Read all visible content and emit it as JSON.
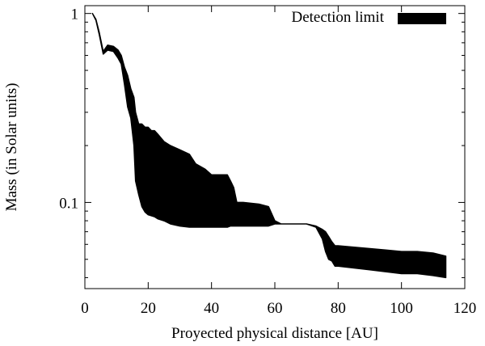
{
  "chart_data": {
    "type": "area",
    "title": "",
    "xlabel": "Proyected physical distance [AU]",
    "ylabel": "Mass (in Solar units)",
    "xlim": [
      0,
      120
    ],
    "ylim": [
      0.035,
      1.1
    ],
    "yscale": "log",
    "grid": false,
    "legend": "top-right",
    "xticks": [
      0,
      20,
      40,
      60,
      80,
      100,
      120
    ],
    "xtick_labels": [
      "0",
      "20",
      "40",
      "60",
      "80",
      "100",
      "120"
    ],
    "yticks": [
      0.1,
      1
    ],
    "ytick_labels": [
      "0.1",
      "1"
    ],
    "series": [
      {
        "name": "Detection limit",
        "color": "#000000",
        "x": [
          2.4,
          3.5,
          4.5,
          5.8,
          7.2,
          9,
          10.5,
          11.5,
          12.5,
          13.5,
          14.5,
          15.5,
          16,
          17,
          18,
          19,
          20,
          21,
          22,
          23,
          25,
          27,
          30,
          33,
          35,
          38,
          40,
          42,
          45,
          46,
          47,
          48,
          50,
          55,
          58,
          60,
          62,
          65,
          70,
          73,
          75,
          76,
          77,
          78,
          79,
          80,
          85,
          90,
          95,
          100,
          105,
          110,
          114
        ],
        "lower": [
          1.0,
          0.92,
          0.78,
          0.61,
          0.64,
          0.63,
          0.58,
          0.54,
          0.42,
          0.32,
          0.28,
          0.2,
          0.13,
          0.11,
          0.095,
          0.089,
          0.086,
          0.085,
          0.084,
          0.082,
          0.08,
          0.077,
          0.075,
          0.074,
          0.074,
          0.074,
          0.074,
          0.074,
          0.074,
          0.075,
          0.075,
          0.075,
          0.075,
          0.075,
          0.075,
          0.077,
          0.077,
          0.077,
          0.077,
          0.074,
          0.064,
          0.055,
          0.05,
          0.049,
          0.046,
          0.046,
          0.045,
          0.044,
          0.043,
          0.042,
          0.042,
          0.041,
          0.04
        ],
        "upper": [
          1.0,
          0.93,
          0.8,
          0.63,
          0.68,
          0.67,
          0.64,
          0.6,
          0.52,
          0.47,
          0.4,
          0.36,
          0.3,
          0.26,
          0.26,
          0.25,
          0.25,
          0.24,
          0.24,
          0.23,
          0.21,
          0.2,
          0.19,
          0.18,
          0.16,
          0.15,
          0.14,
          0.14,
          0.14,
          0.13,
          0.12,
          0.1,
          0.1,
          0.098,
          0.095,
          0.08,
          0.077,
          0.077,
          0.077,
          0.075,
          0.072,
          0.07,
          0.066,
          0.062,
          0.059,
          0.059,
          0.058,
          0.057,
          0.056,
          0.055,
          0.055,
          0.054,
          0.052
        ]
      }
    ]
  }
}
